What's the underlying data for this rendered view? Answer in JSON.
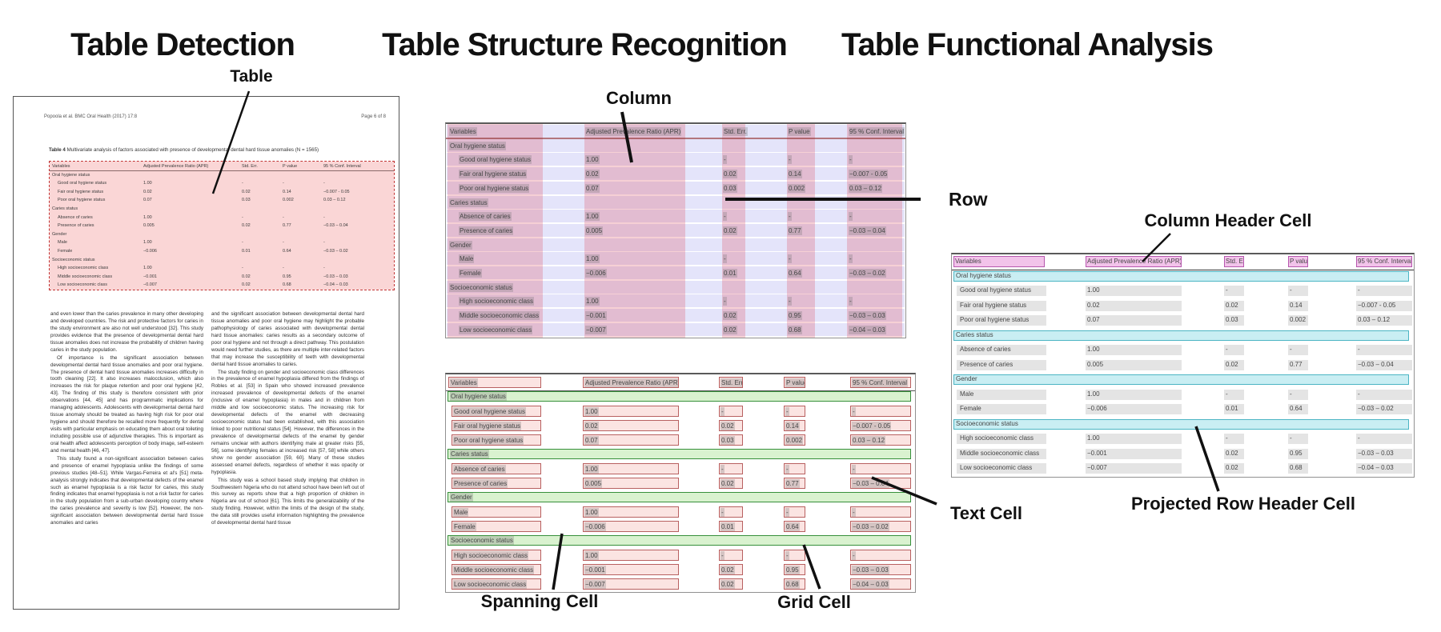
{
  "panels": {
    "detection": {
      "title": "Table Detection",
      "callout_table": "Table"
    },
    "structure": {
      "title": "Table Structure Recognition",
      "callout_column": "Column",
      "callout_row": "Row",
      "callout_spanning": "Spanning Cell",
      "callout_grid": "Grid Cell",
      "callout_text": "Text Cell"
    },
    "functional": {
      "title": "Table Functional Analysis",
      "callout_column_header": "Column Header Cell",
      "callout_projected_row_header": "Projected Row Header Cell"
    }
  },
  "document": {
    "header_left": "Popoola et al. BMC Oral Health  (2017) 17:8",
    "header_right": "Page 6 of 8",
    "caption_bold": "Table 4",
    "caption_rest": " Multivariate analysis of factors associated with presence of developmental dental hard tissue anomalies (N = 1565)",
    "body_col1": [
      "and even lower than the caries prevalence in many other developing and developed countries. The risk and protective factors for caries in the study environment are also not well understood [32]. This study provides evidence that the presence of developmental dental hard tissue anomalies does not increase the probability of children having caries in the study population.",
      "Of importance is the significant association between developmental dental hard tissue anomalies and poor oral hygiene. The presence of dental hard tissue anomalies increases difficulty in tooth cleaning [22]. It also increases malocclusion, which also increases the risk for plaque retention and poor oral hygiene [42, 43]. The finding of this study is therefore consistent with prior observations [44, 45] and has programmatic implications for managing adolescents. Adolescents with developmental dental hard tissue anomaly should be treated as having high risk for poor oral hygiene and should therefore be recalled more frequently for dental visits with particular emphasis on educating them about oral toileting including possible use of adjunctive therapies. This is important as oral health affect adolescents perception of body image, self-esteem and mental health [46, 47].",
      "This study found a non-significant association between caries and presence of enamel hypoplasia unlike the findings of some previous studies [48–51]. While Vargas-Ferreira et al's [51] meta-analysis strongly indicates that developmental defects of the enamel such as enamel hypoplasia is a risk factor for caries, this study finding indicates that enamel hypoplasia is not a risk factor for caries in the study population from a sub-urban developing country where the caries prevalence and severity is low [52]. However, the non-significant association between developmental dental hard tissue anomalies and caries"
    ],
    "body_col2": [
      "and the significant association between developmental dental hard tissue anomalies and poor oral hygiene may highlight the probable pathophysiology of caries associated with developmental dental hard tissue anomalies: caries results as a secondary outcome of poor oral hygiene and not through a direct pathway. This postulation would need further studies, as there are multiple inter-related factors that may increase the susceptibility of teeth with developmental dental hard tissue anomalies to caries.",
      "The study finding on gender and socioeconomic class differences in the prevalence of enamel hypoplasia differed from the findings of Robles et al. [53] in Spain who showed increased prevalence increased prevalence of developmental defects of the enamel (inclusive of enamel hypoplasia) in males and in children from middle and low socioeconomic status. The increasing risk for developmental defects of the enamel with decreasing socioeconomic status had been established, with this association linked to poor nutritional status [54]. However, the differences in the prevalence of developmental defects of the enamel by gender remains unclear with authors identifying male at greater risks [55, 56], some identifying females at increased risk [57, 58] while others show no gender association [59, 60]. Many of these studies assessed enamel defects, regardless of whether it was opacity or hypoplasia.",
      "This study was a school based study implying that children in Southwestern Nigeria who do not attend school have been left out of this survey as reports show that a high proportion of children in Nigeria are out of school [61]. This limits the generalizability of the study finding. However, within the limits of the design of the study, the data still provides useful information highlighting the prevalence of developmental dental hard tissue"
    ]
  },
  "table": {
    "columns": [
      "Variables",
      "Adjusted Prevalence Ratio (APR)",
      "Std. Err.",
      "P value",
      "95 % Conf. Interval"
    ],
    "rows": [
      {
        "type": "section",
        "label": "Oral hygiene status",
        "values": [
          "",
          "",
          "",
          ""
        ]
      },
      {
        "type": "item",
        "label": "Good oral hygiene status",
        "values": [
          "1.00",
          "-",
          "-",
          "-"
        ]
      },
      {
        "type": "item",
        "label": "Fair oral hygiene status",
        "values": [
          "0.02",
          "0.02",
          "0.14",
          "−0.007 - 0.05"
        ]
      },
      {
        "type": "item",
        "label": "Poor oral hygiene status",
        "values": [
          "0.07",
          "0.03",
          "0.002",
          "0.03 – 0.12"
        ]
      },
      {
        "type": "section",
        "label": "Caries status",
        "values": [
          "",
          "",
          "",
          ""
        ]
      },
      {
        "type": "item",
        "label": "Absence of caries",
        "values": [
          "1.00",
          "-",
          "-",
          "-"
        ]
      },
      {
        "type": "item",
        "label": "Presence of caries",
        "values": [
          "0.005",
          "0.02",
          "0.77",
          "−0.03 – 0.04"
        ]
      },
      {
        "type": "section",
        "label": "Gender",
        "values": [
          "",
          "",
          "",
          ""
        ]
      },
      {
        "type": "item",
        "label": "Male",
        "values": [
          "1.00",
          "-",
          "-",
          "-"
        ]
      },
      {
        "type": "item",
        "label": "Female",
        "values": [
          "−0.006",
          "0.01",
          "0.64",
          "−0.03 – 0.02"
        ]
      },
      {
        "type": "section",
        "label": "Socioeconomic status",
        "values": [
          "",
          "",
          "",
          ""
        ]
      },
      {
        "type": "item",
        "label": "High socioeconomic class",
        "values": [
          "1.00",
          "-",
          "-",
          "-"
        ]
      },
      {
        "type": "item",
        "label": "Middle socioeconomic class",
        "values": [
          "−0.001",
          "0.02",
          "0.95",
          "−0.03 – 0.03"
        ]
      },
      {
        "type": "item",
        "label": "Low socioeconomic class",
        "values": [
          "−0.007",
          "0.02",
          "0.68",
          "−0.04 – 0.03"
        ]
      }
    ]
  },
  "colors": {
    "column_band": "rgba(222,72,92,0.26)",
    "row_band": "rgba(118,122,232,0.20)",
    "doc_table_fill": "rgba(243,148,148,0.38)",
    "doc_table_border": "#c23434",
    "grid_cell_fill": "#fbe4e2",
    "grid_cell_border": "#b86060",
    "spanning_fill": "#d9f2cf",
    "spanning_border": "#37903b",
    "column_header_fill": "#f2c3ea",
    "column_header_border": "#b657ae",
    "projected_row_fill": "#c9eef3",
    "projected_row_border": "#4cb5c4",
    "text_cell_gray": "#e4e4e4",
    "arrow": "#111111"
  }
}
